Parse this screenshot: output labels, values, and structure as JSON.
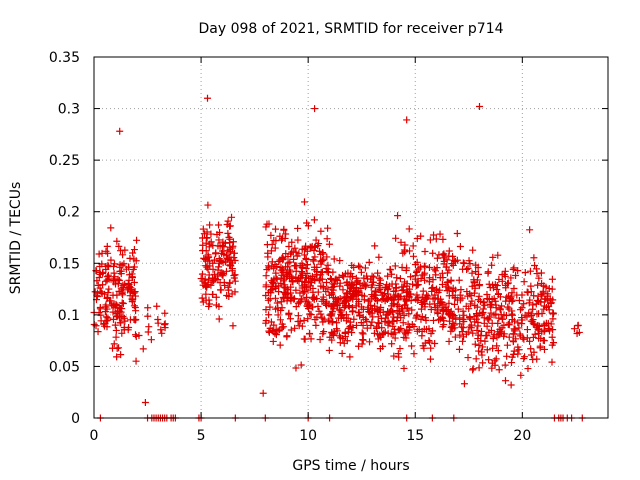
{
  "chart_data": {
    "type": "scatter",
    "title": "Day 098 of 2021, SRMTID for receiver p714",
    "xlabel": "GPS time / hours",
    "ylabel": "SRMTID / TECUs",
    "xlim": [
      0,
      24
    ],
    "ylim": [
      0,
      0.35
    ],
    "xticks": [
      0,
      5,
      10,
      15,
      20
    ],
    "xtick_labels": [
      "0",
      "5",
      "10",
      "15",
      "20"
    ],
    "yticks": [
      0,
      0.05,
      0.1,
      0.15,
      0.2,
      0.25,
      0.3,
      0.35
    ],
    "ytick_labels": [
      "0",
      "0.05",
      "0.1",
      "0.15",
      "0.2",
      "0.25",
      "0.3",
      "0.35"
    ],
    "grid": true,
    "marker": "+",
    "color": "#e00000",
    "clusters": [
      {
        "x_range": [
          0.0,
          2.0
        ],
        "y_range": [
          0.02,
          0.28
        ],
        "center": 0.12,
        "count": 190
      },
      {
        "x_range": [
          2.5,
          3.4
        ],
        "y_range": [
          0.03,
          0.15
        ],
        "center": 0.09,
        "count": 14
      },
      {
        "x_range": [
          5.0,
          6.6
        ],
        "y_range": [
          0.06,
          0.31
        ],
        "center": 0.15,
        "count": 150
      },
      {
        "x_range": [
          8.0,
          11.0
        ],
        "y_range": [
          0.02,
          0.3
        ],
        "center": 0.13,
        "count": 330
      },
      {
        "x_range": [
          11.0,
          14.0
        ],
        "y_range": [
          0.02,
          0.23
        ],
        "center": 0.11,
        "count": 300
      },
      {
        "x_range": [
          14.0,
          17.0
        ],
        "y_range": [
          0.02,
          0.29
        ],
        "center": 0.12,
        "count": 280
      },
      {
        "x_range": [
          17.0,
          21.5
        ],
        "y_range": [
          0.02,
          0.3
        ],
        "center": 0.1,
        "count": 360
      },
      {
        "x_range": [
          22.4,
          22.7
        ],
        "y_range": [
          0.07,
          0.1
        ],
        "center": 0.085,
        "count": 5
      }
    ],
    "outliers": [
      {
        "x": 5.3,
        "y": 0.31
      },
      {
        "x": 10.3,
        "y": 0.3
      },
      {
        "x": 18.0,
        "y": 0.302
      },
      {
        "x": 14.6,
        "y": 0.289
      },
      {
        "x": 1.2,
        "y": 0.278
      },
      {
        "x": 2.4,
        "y": 0.015
      },
      {
        "x": 7.9,
        "y": 0.024
      },
      {
        "x": 2.1,
        "y": 0.08
      },
      {
        "x": 2.3,
        "y": 0.067
      }
    ],
    "zero_points_x": [
      0.3,
      2.5,
      2.7,
      2.8,
      2.9,
      3.0,
      3.1,
      3.2,
      3.3,
      3.4,
      3.6,
      3.7,
      3.8,
      4.9,
      5.0,
      6.6,
      8.0,
      10.0,
      11.0,
      14.6,
      15.8,
      16.8,
      21.5,
      21.7,
      21.8,
      21.9,
      22.1,
      22.3,
      22.8
    ]
  }
}
